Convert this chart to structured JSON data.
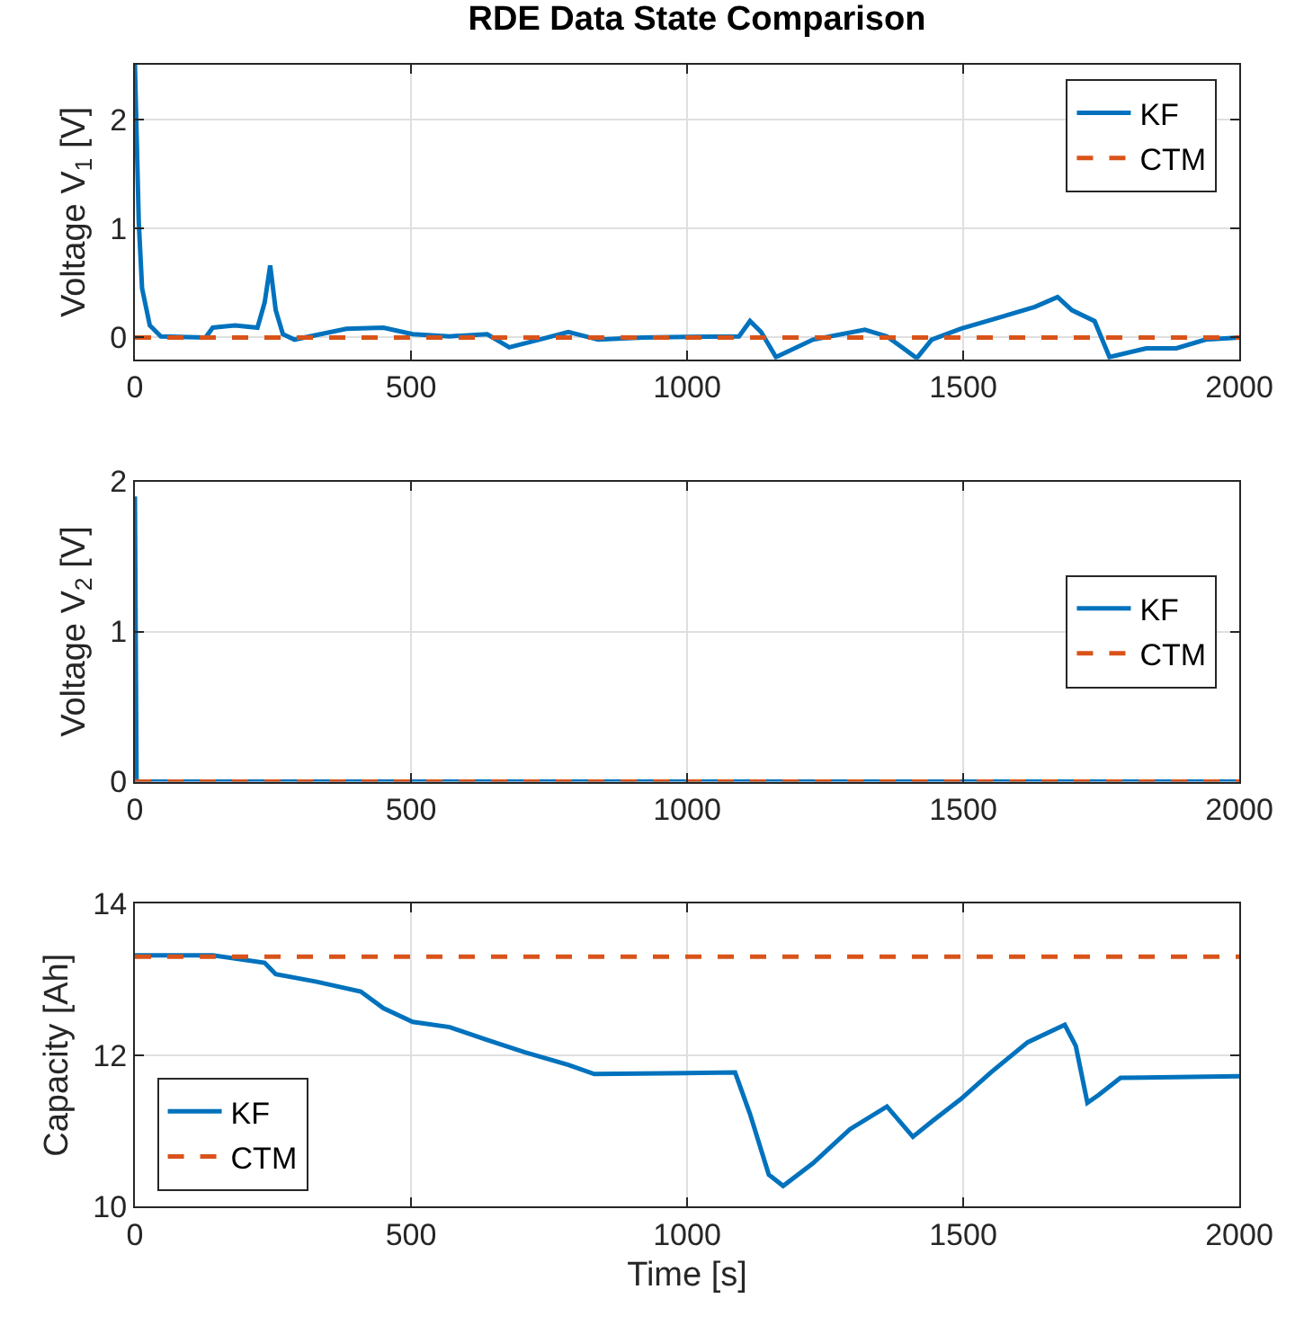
{
  "chart_data": [
    {
      "type": "line",
      "title": "RDE Data State Comparison",
      "ylabel": "Voltage V$_{1}$ [V]",
      "xlim": [
        0,
        2000
      ],
      "xticks": [
        0,
        500,
        1000,
        1500,
        2000
      ],
      "ylim": [
        -0.2,
        2.5
      ],
      "yticks": [
        0,
        1,
        2
      ],
      "grid": true,
      "legend": "top right",
      "series": [
        {
          "name": "KF",
          "color": "#0072bd",
          "line_style": "solid",
          "x": [
            0,
            7,
            13,
            27,
            47,
            128,
            141,
            181,
            222,
            235,
            245,
            255,
            268,
            289,
            383,
            450,
            503,
            570,
            638,
            678,
            732,
            785,
            839,
            919,
            1094,
            1114,
            1134,
            1161,
            1228,
            1322,
            1362,
            1389,
            1416,
            1443,
            1496,
            1563,
            1630,
            1671,
            1697,
            1738,
            1765,
            1832,
            1886,
            1939,
            2000
          ],
          "values": [
            2.5,
            1.06,
            0.45,
            0.11,
            0.01,
            0,
            0.09,
            0.11,
            0.09,
            0.32,
            0.66,
            0.25,
            0.03,
            -0.02,
            0.08,
            0.09,
            0.03,
            0.01,
            0.03,
            -0.09,
            -0.02,
            0.05,
            -0.02,
            0,
            0.01,
            0.15,
            0.05,
            -0.18,
            -0.02,
            0.07,
            0.01,
            -0.09,
            -0.19,
            -0.02,
            0.08,
            0.18,
            0.28,
            0.37,
            0.25,
            0.15,
            -0.18,
            -0.1,
            -0.1,
            -0.02,
            0
          ]
        },
        {
          "name": "CTM",
          "color": "#d95319",
          "line_style": "dashed",
          "x": [
            0,
            2000
          ],
          "values": [
            0,
            0
          ]
        }
      ]
    },
    {
      "type": "line",
      "ylabel": "Voltage V$_{2}$ [V]",
      "xlim": [
        0,
        2000
      ],
      "xticks": [
        0,
        500,
        1000,
        1500,
        2000
      ],
      "ylim": [
        0,
        2
      ],
      "yticks": [
        0,
        1,
        2
      ],
      "grid": true,
      "legend": "right",
      "series": [
        {
          "name": "KF",
          "color": "#0072bd",
          "line_style": "solid",
          "x": [
            0,
            3,
            2000
          ],
          "values": [
            1.9,
            0,
            0
          ]
        },
        {
          "name": "CTM",
          "color": "#d95319",
          "line_style": "dashed",
          "x": [
            0,
            2000
          ],
          "values": [
            0,
            0
          ]
        }
      ]
    },
    {
      "type": "line",
      "xlabel": "Time [s]",
      "ylabel": "Capacity [Ah]",
      "xlim": [
        0,
        2000
      ],
      "xticks": [
        0,
        500,
        1000,
        1500,
        2000
      ],
      "ylim": [
        10,
        14
      ],
      "yticks": [
        10,
        12,
        14
      ],
      "grid": true,
      "legend": "bottom left",
      "series": [
        {
          "name": "KF",
          "color": "#0072bd",
          "line_style": "solid",
          "x": [
            0,
            141,
            235,
            255,
            329,
            409,
            450,
            503,
            570,
            638,
            705,
            785,
            832,
            1087,
            1114,
            1148,
            1174,
            1228,
            1295,
            1362,
            1409,
            1443,
            1496,
            1550,
            1617,
            1684,
            1704,
            1725,
            1745,
            1785,
            2000
          ],
          "values": [
            13.32,
            13.32,
            13.22,
            13.07,
            12.97,
            12.84,
            12.62,
            12.44,
            12.37,
            12.2,
            12.04,
            11.87,
            11.75,
            11.77,
            11.22,
            10.42,
            10.27,
            10.57,
            11.02,
            11.32,
            10.92,
            11.12,
            11.42,
            11.77,
            12.17,
            12.4,
            12.12,
            11.37,
            11.47,
            11.7,
            11.72
          ]
        },
        {
          "name": "CTM",
          "color": "#d95319",
          "line_style": "dashed",
          "x": [
            0,
            2000
          ],
          "values": [
            13.3,
            13.3
          ]
        }
      ]
    }
  ]
}
